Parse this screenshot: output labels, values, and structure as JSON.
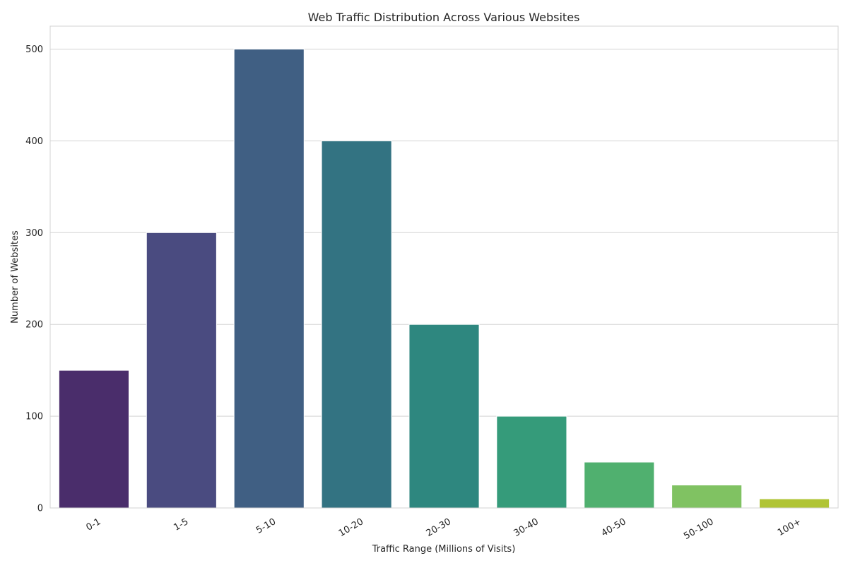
{
  "chart_data": {
    "type": "bar",
    "title": "Web Traffic Distribution Across Various Websites",
    "xlabel": "Traffic Range (Millions of Visits)",
    "ylabel": "Number of Websites",
    "categories": [
      "0-1",
      "1-5",
      "5-10",
      "10-20",
      "20-30",
      "30-40",
      "40-50",
      "50-100",
      "100+"
    ],
    "values": [
      150,
      300,
      500,
      400,
      200,
      100,
      50,
      25,
      10
    ],
    "ylim": [
      0,
      525
    ],
    "yticks": [
      "0",
      "100",
      "200",
      "300",
      "400",
      "500"
    ],
    "grid": "horizontal",
    "colors": [
      "#4a2d6b",
      "#4a4b80",
      "#405f83",
      "#337382",
      "#2e877f",
      "#359b7a",
      "#50b06f",
      "#80c262",
      "#b0c435"
    ]
  }
}
